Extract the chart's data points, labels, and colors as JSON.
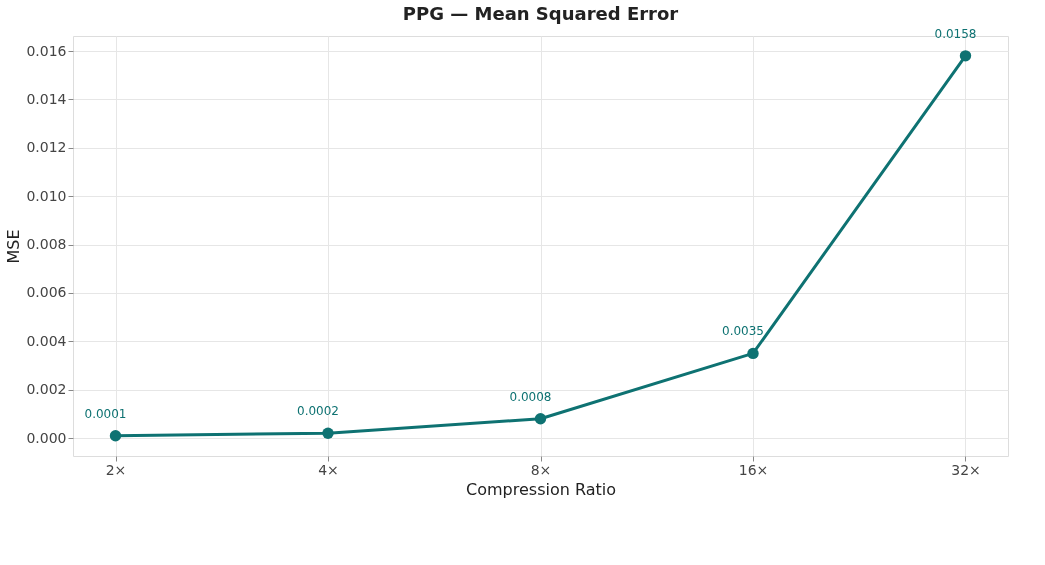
{
  "chart_data": {
    "type": "line",
    "title": "PPG — Mean Squared Error",
    "xlabel": "Compression Ratio",
    "ylabel": "MSE",
    "categories": [
      "2×",
      "4×",
      "8×",
      "16×",
      "32×"
    ],
    "series": [
      {
        "color": "#0e7272",
        "values": [
          0.0001,
          0.0002,
          0.0008,
          0.0035,
          0.0158
        ]
      }
    ],
    "ylim": [
      -0.00074,
      0.01662
    ],
    "yticks": [
      {
        "value": 0,
        "label": "0.000"
      },
      {
        "value": 0.002,
        "label": "0.002"
      },
      {
        "value": 0.004,
        "label": "0.004"
      },
      {
        "value": 0.006,
        "label": "0.006"
      },
      {
        "value": 0.008,
        "label": "0.008"
      },
      {
        "value": 0.01,
        "label": "0.010"
      },
      {
        "value": 0.012,
        "label": "0.012"
      },
      {
        "value": 0.014,
        "label": "0.014"
      },
      {
        "value": 0.016,
        "label": "0.016"
      }
    ],
    "grid": true,
    "marker": "circle",
    "line_style": "solid",
    "data_labels": true
  }
}
